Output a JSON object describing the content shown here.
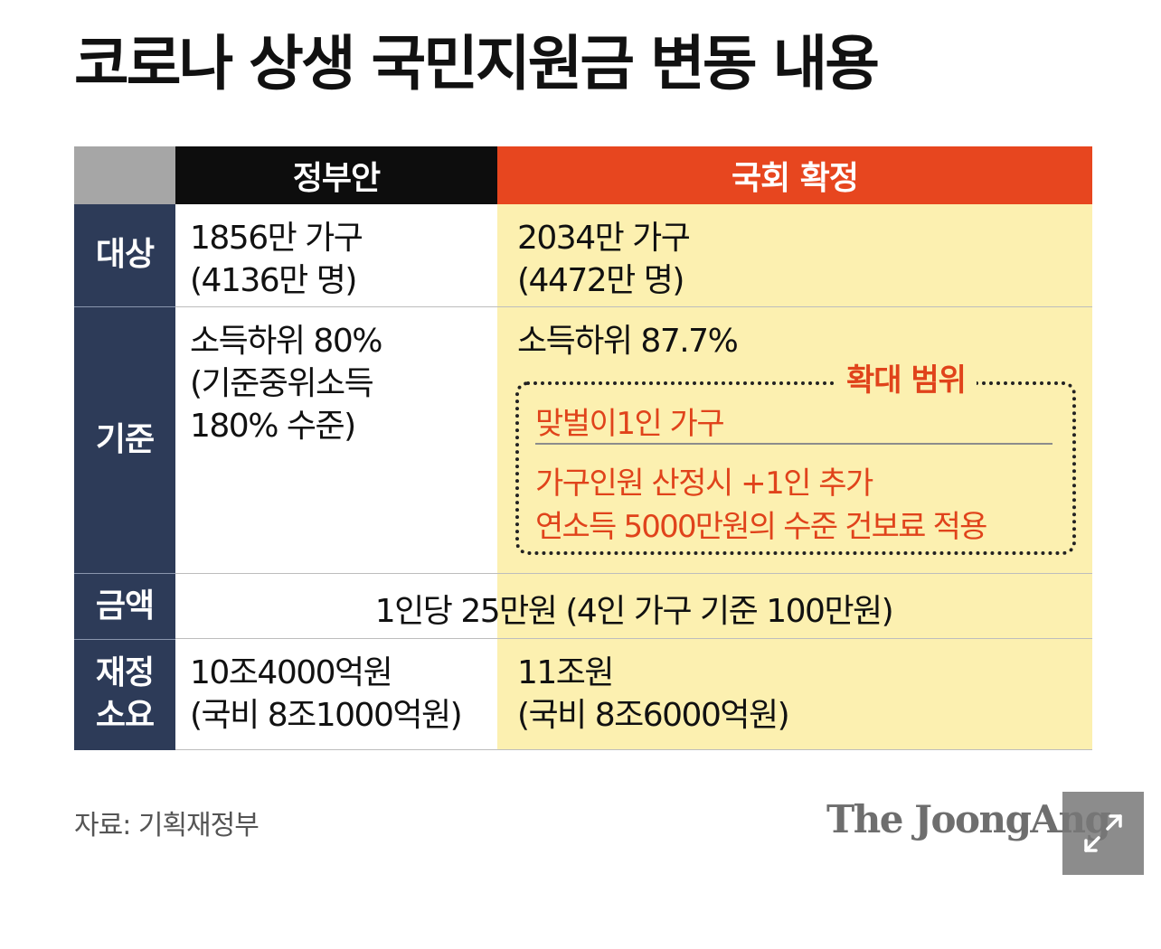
{
  "title": "코로나 상생 국민지원금 변동 내용",
  "columns": {
    "gov": "정부안",
    "national": "국회 확정"
  },
  "rows": {
    "target": {
      "label": "대상",
      "gov": [
        "1856만 가구",
        "(4136만 명)"
      ],
      "national": [
        "2034만 가구",
        "(4472만 명)"
      ]
    },
    "criteria": {
      "label": "기준",
      "gov": [
        "소득하위 80%",
        "(기준중위소득",
        "180% 수준)"
      ],
      "national": [
        "소득하위 87.7%"
      ],
      "expansion": {
        "title": "확대 범위",
        "item1": "맞벌이1인 가구",
        "item2_line1": "가구인원 산정시 +1인 추가",
        "item2_line2": "연소득 5000만원의 수준 건보료 적용"
      }
    },
    "amount": {
      "label": "금액",
      "text": "1인당 25만원 (4인 가구 기준 100만원)"
    },
    "budget": {
      "label_line1": "재정",
      "label_line2": "소요",
      "gov": [
        "10조4000억원",
        "(국비 8조1000억원)"
      ],
      "national": [
        "11조원",
        "(국비 8조6000억원)"
      ]
    }
  },
  "source": "자료: 기획재정부",
  "brand": "The JoongAng",
  "colors": {
    "header_gov": "#0d0d0d",
    "header_national": "#e7461f",
    "row_label_bg": "#2d3b58",
    "national_bg": "#fcf0b0",
    "highlight_text": "#e0431b"
  },
  "icons": {
    "expand": "expand-arrows-icon"
  }
}
